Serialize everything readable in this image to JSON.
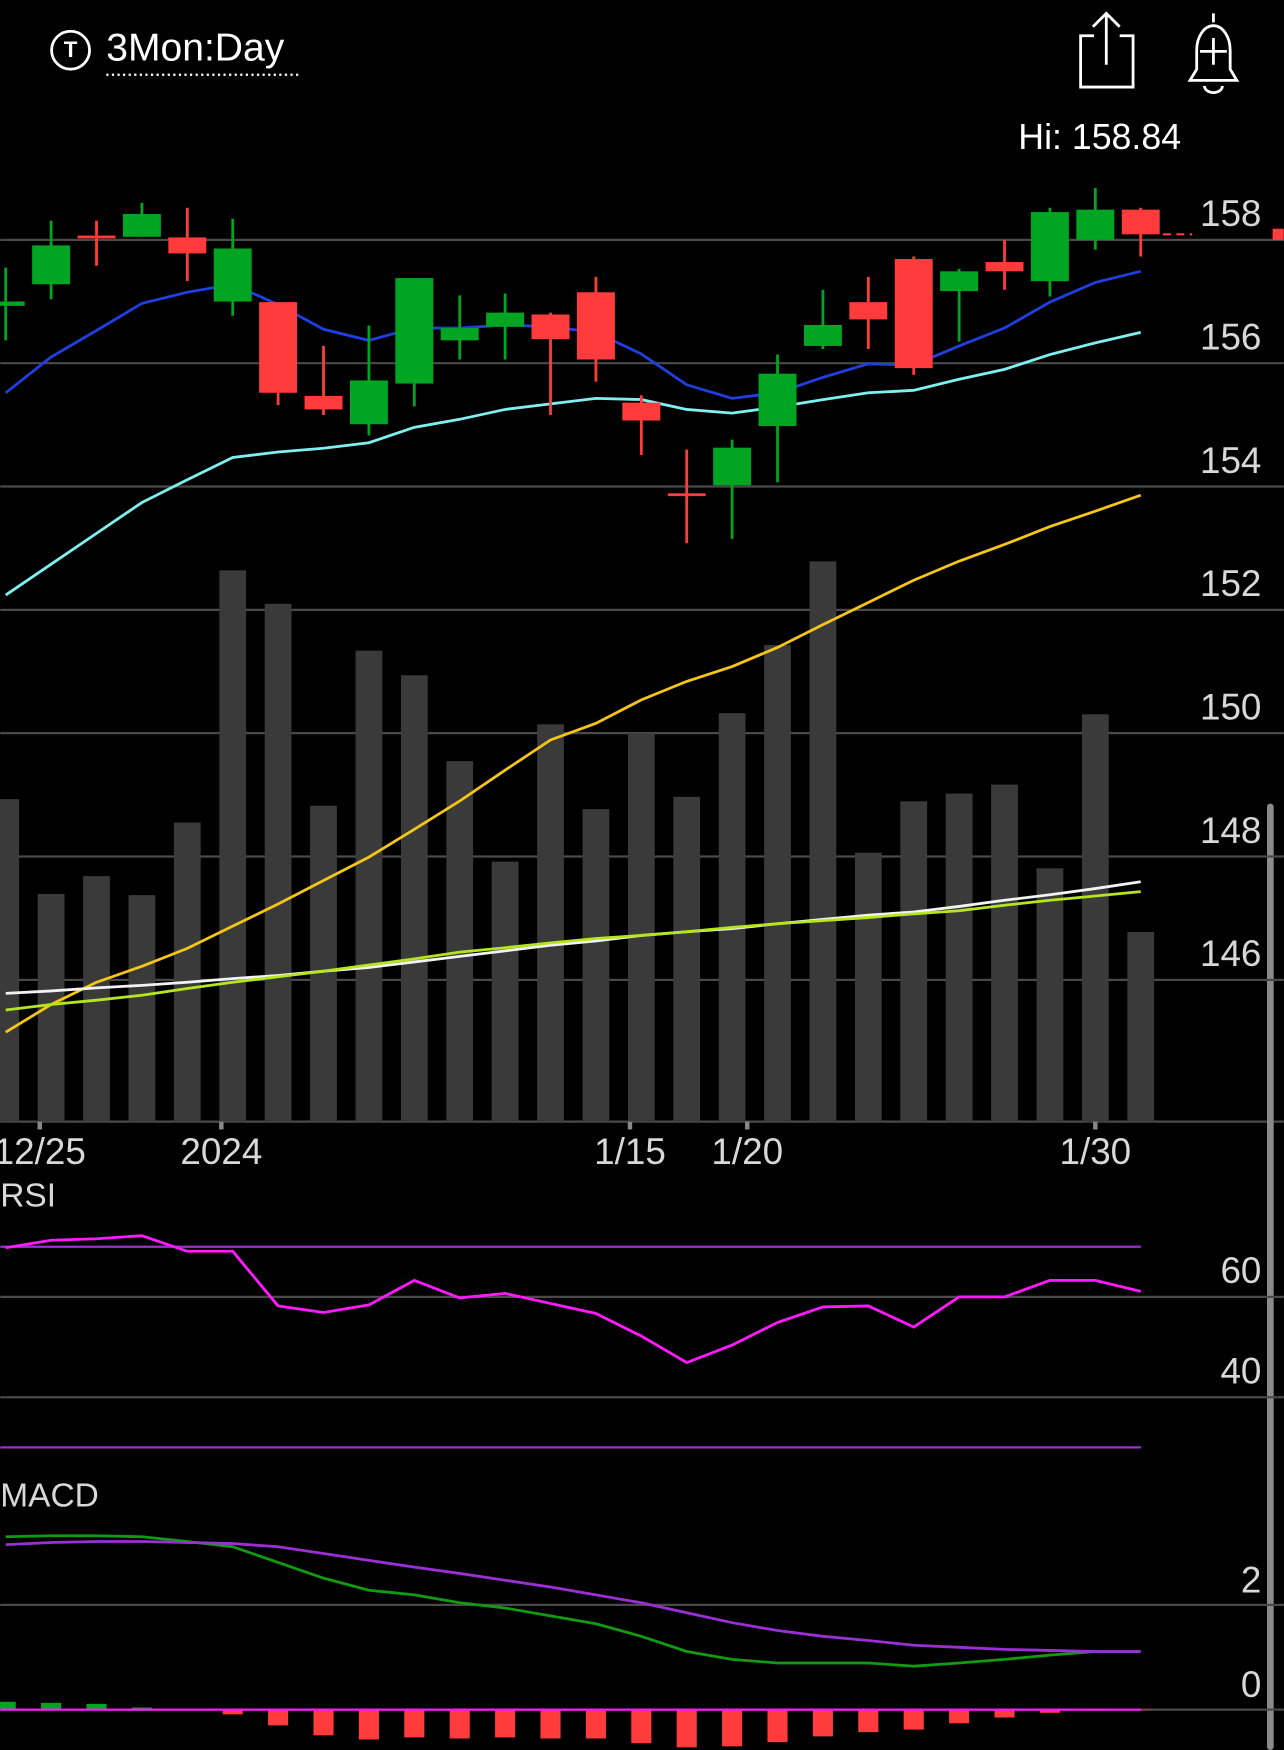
{
  "header": {
    "title": "3Mon:Day"
  },
  "chart_data": [
    {
      "type": "candlestick",
      "annotation": "Hi: 158.84",
      "xlim": [
        -0.12,
        28.15
      ],
      "xticks": [
        {
          "value": 0.75,
          "label": "12/25"
        },
        {
          "value": 4.75,
          "label": "2024"
        },
        {
          "value": 13.75,
          "label": "1/15"
        },
        {
          "value": 16.333,
          "label": "1/20"
        },
        {
          "value": 24,
          "label": "1/30"
        }
      ],
      "ylim": [
        143.7,
        160.08
      ],
      "yticks": [
        146,
        148,
        150,
        152,
        154,
        156,
        158
      ],
      "up_color": "#00a521",
      "down_color": "#ff3b3b",
      "open": [
        156.93,
        157.28,
        158.07,
        158.05,
        158.04,
        157.0,
        156.99,
        155.47,
        155.01,
        155.67,
        156.37,
        156.59,
        156.79,
        157.15,
        155.36,
        153.89,
        154.02,
        154.98,
        156.28,
        156.99,
        157.69,
        157.17,
        157.64,
        157.33,
        158.0,
        158.49
      ],
      "high": [
        157.55,
        158.31,
        158.31,
        158.6,
        158.52,
        158.34,
        156.99,
        156.28,
        156.61,
        157.38,
        157.1,
        157.13,
        156.82,
        157.4,
        155.48,
        154.6,
        154.76,
        156.14,
        157.19,
        157.4,
        157.73,
        157.53,
        158.0,
        158.52,
        158.84,
        158.52
      ],
      "low": [
        156.37,
        157.04,
        157.58,
        158.05,
        157.33,
        156.77,
        155.32,
        155.16,
        154.83,
        155.3,
        156.06,
        156.06,
        155.16,
        155.7,
        154.51,
        153.08,
        153.15,
        154.07,
        156.23,
        156.23,
        155.81,
        156.35,
        157.19,
        157.08,
        157.84,
        157.73
      ],
      "close": [
        157.0,
        157.91,
        158.03,
        158.42,
        157.78,
        157.86,
        155.52,
        155.25,
        155.72,
        157.38,
        156.57,
        156.82,
        156.39,
        156.06,
        155.07,
        153.86,
        154.63,
        155.83,
        156.62,
        156.71,
        155.92,
        157.49,
        157.49,
        158.45,
        158.49,
        158.09
      ],
      "series": [
        {
          "color": "#1f3fe0",
          "values": [
            155.52,
            156.1,
            156.53,
            156.97,
            157.15,
            157.28,
            156.95,
            156.55,
            156.37,
            156.57,
            156.57,
            156.62,
            156.59,
            156.5,
            156.15,
            155.65,
            155.43,
            155.52,
            155.77,
            155.99,
            155.97,
            156.28,
            156.57,
            156.99,
            157.31,
            157.49
          ]
        },
        {
          "color": "#7ff0f0",
          "values": [
            152.24,
            152.74,
            153.24,
            153.74,
            154.11,
            154.47,
            154.56,
            154.62,
            154.71,
            154.96,
            155.09,
            155.25,
            155.34,
            155.43,
            155.41,
            155.25,
            155.19,
            155.29,
            155.41,
            155.52,
            155.56,
            155.74,
            155.9,
            156.14,
            156.33,
            156.5
          ]
        },
        {
          "color": "#f5c518",
          "values": [
            145.15,
            145.6,
            145.96,
            146.22,
            146.51,
            146.87,
            147.23,
            147.61,
            147.99,
            148.44,
            148.9,
            149.4,
            149.89,
            150.16,
            150.54,
            150.84,
            151.08,
            151.39,
            151.76,
            152.12,
            152.48,
            152.79,
            153.06,
            153.35,
            153.6,
            153.86
          ]
        },
        {
          "color": "#f2f2f2",
          "values": [
            145.78,
            145.82,
            145.87,
            145.91,
            145.96,
            146.02,
            146.07,
            146.14,
            146.2,
            146.29,
            146.38,
            146.47,
            146.56,
            146.63,
            146.72,
            146.78,
            146.83,
            146.91,
            146.98,
            147.05,
            147.1,
            147.19,
            147.29,
            147.38,
            147.48,
            147.59
          ]
        },
        {
          "color": "#b5e61d",
          "values": [
            145.51,
            145.6,
            145.67,
            145.75,
            145.86,
            145.96,
            146.05,
            146.14,
            146.24,
            146.34,
            146.45,
            146.52,
            146.6,
            146.67,
            146.72,
            146.78,
            146.85,
            146.91,
            146.96,
            147.01,
            147.07,
            147.12,
            147.21,
            147.29,
            147.36,
            147.43
          ]
        }
      ],
      "volume": {
        "color": "#3a3a3a",
        "ylim": [
          0,
          101
        ],
        "values": [
          57.8,
          40.8,
          44,
          40.6,
          53.6,
          98.8,
          92.8,
          56.6,
          84.4,
          80,
          64.6,
          46.6,
          71.2,
          56,
          69.6,
          58.2,
          73.2,
          85.4,
          100.4,
          48.2,
          57.4,
          58.8,
          60.4,
          45.4,
          73,
          34
        ]
      }
    },
    {
      "type": "line",
      "title": "RSI",
      "xlim": [
        -0.12,
        28.15
      ],
      "ylim": [
        25.3,
        82.7
      ],
      "yticks": [
        40,
        60
      ],
      "levels": [
        70,
        30
      ],
      "level_color": "#9b2fd6",
      "series": [
        {
          "color": "#ff1aff",
          "values": [
            69.8,
            71.3,
            71.6,
            72.2,
            69.1,
            69.1,
            58.2,
            56.9,
            58.4,
            63.3,
            59.8,
            60.7,
            58.7,
            56.7,
            52.2,
            46.9,
            50.4,
            54.9,
            58.0,
            58.2,
            54.0,
            60.0,
            60.0,
            63.3,
            63.3,
            61.1
          ]
        }
      ]
    },
    {
      "type": "macd",
      "title": "MACD",
      "xlim": [
        -0.12,
        28.15
      ],
      "ylim": [
        -0.77,
        4.3
      ],
      "yticks": [
        0,
        2
      ],
      "zero_color": "#ff1aff",
      "series": [
        {
          "color": "#129a12",
          "values": [
            3.3,
            3.32,
            3.32,
            3.3,
            3.21,
            3.11,
            2.81,
            2.51,
            2.28,
            2.19,
            2.04,
            1.94,
            1.79,
            1.64,
            1.4,
            1.11,
            0.96,
            0.89,
            0.89,
            0.89,
            0.83,
            0.89,
            0.96,
            1.04,
            1.11,
            1.11
          ]
        },
        {
          "color": "#9b2fd6",
          "values": [
            3.15,
            3.19,
            3.21,
            3.21,
            3.19,
            3.17,
            3.11,
            2.98,
            2.85,
            2.72,
            2.6,
            2.47,
            2.34,
            2.19,
            2.04,
            1.85,
            1.66,
            1.51,
            1.4,
            1.32,
            1.23,
            1.19,
            1.15,
            1.13,
            1.11,
            1.11
          ]
        }
      ],
      "histogram": {
        "up_color": "#00a521",
        "down_color": "#ff3b3b",
        "values": [
          0.15,
          0.13,
          0.11,
          0.04,
          0.01,
          -0.09,
          -0.3,
          -0.49,
          -0.57,
          -0.53,
          -0.55,
          -0.53,
          -0.55,
          -0.55,
          -0.64,
          -0.72,
          -0.7,
          -0.62,
          -0.51,
          -0.43,
          -0.38,
          -0.26,
          -0.15,
          -0.06,
          -0.02,
          -0.01
        ]
      }
    }
  ]
}
